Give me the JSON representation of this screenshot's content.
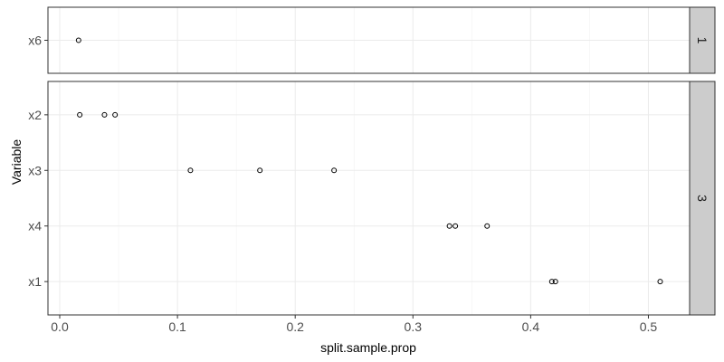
{
  "chart_data": {
    "type": "scatter",
    "xlabel": "split.sample.prop",
    "ylabel": "Variable",
    "xlim": [
      -0.01,
      0.535
    ],
    "x_ticks": [
      0.0,
      0.1,
      0.2,
      0.3,
      0.4,
      0.5
    ],
    "x_tick_labels": [
      "0.0",
      "0.1",
      "0.2",
      "0.3",
      "0.4",
      "0.5"
    ],
    "grid": true,
    "facets": [
      {
        "strip": "1",
        "categories": [
          "x6"
        ],
        "points": [
          {
            "variable": "x6",
            "x": 0.016
          }
        ]
      },
      {
        "strip": "3",
        "categories": [
          "x2",
          "x3",
          "x4",
          "x1"
        ],
        "points": [
          {
            "variable": "x2",
            "x": 0.017
          },
          {
            "variable": "x2",
            "x": 0.038
          },
          {
            "variable": "x2",
            "x": 0.047
          },
          {
            "variable": "x3",
            "x": 0.111
          },
          {
            "variable": "x3",
            "x": 0.17
          },
          {
            "variable": "x3",
            "x": 0.233
          },
          {
            "variable": "x4",
            "x": 0.331
          },
          {
            "variable": "x4",
            "x": 0.336
          },
          {
            "variable": "x4",
            "x": 0.363
          },
          {
            "variable": "x1",
            "x": 0.418
          },
          {
            "variable": "x1",
            "x": 0.421
          },
          {
            "variable": "x1",
            "x": 0.51
          }
        ]
      }
    ]
  }
}
